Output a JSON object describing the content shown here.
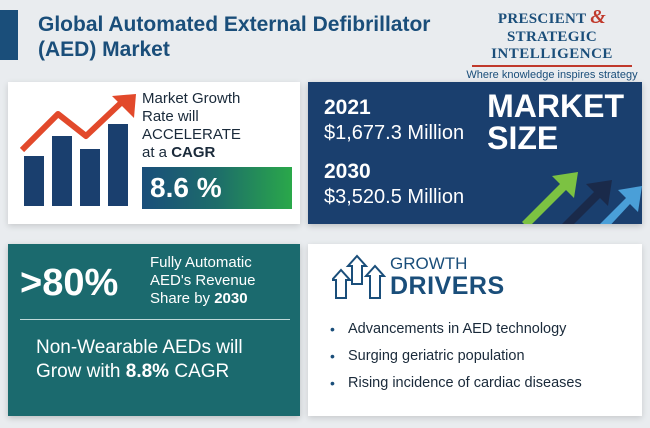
{
  "header": {
    "title": "Global Automated External Defibrillator (AED) Market"
  },
  "logo": {
    "line1a": "PRESCIENT",
    "amp": "&",
    "line1b": "STRATEGIC",
    "line2": "INTELLIGENCE",
    "tagline": "Where knowledge inspires strategy"
  },
  "growth": {
    "line1": "Market Growth",
    "line2": "Rate will",
    "line3": "ACCELERATE",
    "line4_prefix": "at a",
    "line4_bold": "CAGR",
    "cagr": "8.6 %"
  },
  "market_size": {
    "label_line1": "MARKET",
    "label_line2": "SIZE",
    "year1": "2021",
    "value1": "$1,677.3 Million",
    "year2": "2030",
    "value2": "$3,520.5 Million"
  },
  "share": {
    "big": ">80%",
    "line1": "Fully Automatic",
    "line2": "AED's Revenue",
    "line3_prefix": "Share by",
    "line3_bold": "2030",
    "nonwear_line1": "Non-Wearable AEDs will",
    "nonwear_line2_prefix": "Grow with",
    "nonwear_line2_bold": "8.8%",
    "nonwear_line2_suffix": "CAGR"
  },
  "drivers": {
    "label_top": "GROWTH",
    "label_bottom": "DRIVERS",
    "items": [
      "Advancements in AED technology",
      "Surging geriatric population",
      "Rising incidence of cardiac diseases"
    ]
  },
  "colors": {
    "navy": "#1a4e7a",
    "teal": "#1b6a6e",
    "red": "#c0392b",
    "green": "#2aa84a"
  }
}
